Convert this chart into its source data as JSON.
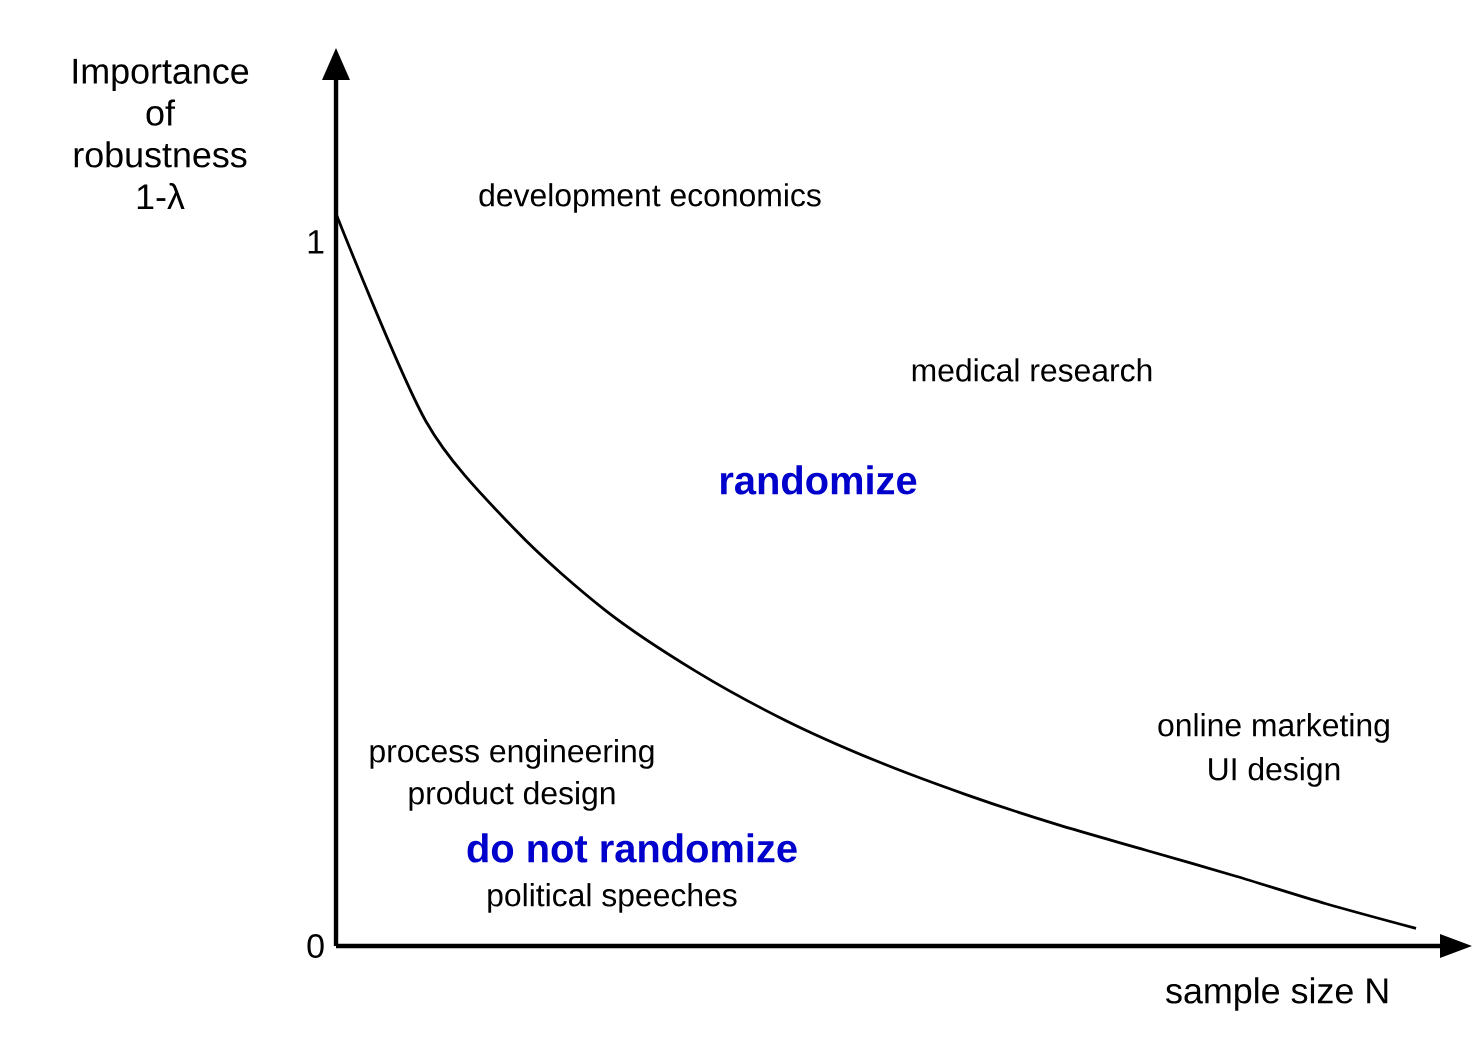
{
  "chart_data": {
    "type": "line",
    "xlabel": "sample size N",
    "ylabel": "Importance of robustness 1-λ",
    "categories": [
      null,
      null,
      null,
      null,
      null,
      null,
      null,
      null,
      null,
      null,
      null,
      null,
      null
    ],
    "values": [
      1.04,
      0.745,
      0.59,
      0.476,
      0.39,
      0.32,
      0.263,
      0.215,
      0.173,
      0.136,
      0.099,
      0.06,
      0.025
    ],
    "color": "#000000",
    "ylim": [
      0,
      1.23
    ],
    "yticks": [
      0,
      1
    ],
    "tick_labels": "y",
    "grid": false,
    "marker": "none",
    "line_style": "solid",
    "annotations": [
      "development economics",
      "medical research",
      "randomize",
      "online marketing",
      "UI design",
      "process engineering",
      "product design",
      "do not randomize",
      "political speeches"
    ]
  }
}
